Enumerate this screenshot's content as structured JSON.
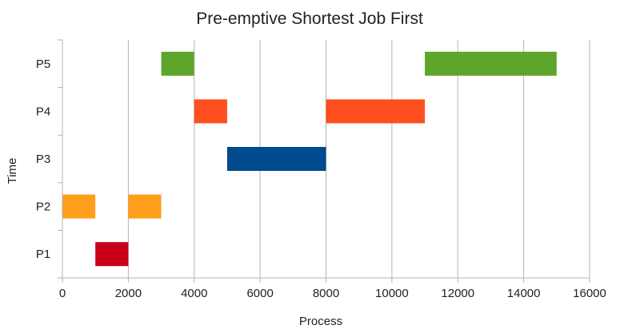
{
  "chart_data": {
    "type": "bar",
    "orientation": "horizontal-gantt",
    "title": "Pre-emptive Shortest Job First",
    "xlabel": "Process",
    "ylabel": "Time",
    "xlim": [
      0,
      16000
    ],
    "x_ticks": [
      0,
      2000,
      4000,
      6000,
      8000,
      10000,
      12000,
      14000,
      16000
    ],
    "categories": [
      "P1",
      "P2",
      "P3",
      "P4",
      "P5"
    ],
    "grid": "vertical",
    "legend": "none",
    "segments": [
      {
        "category": "P1",
        "start": 1000,
        "end": 2000,
        "color": "#c9001a"
      },
      {
        "category": "P2",
        "start": 0,
        "end": 1000,
        "color": "#ff9e1b"
      },
      {
        "category": "P2",
        "start": 2000,
        "end": 3000,
        "color": "#ff9e1b"
      },
      {
        "category": "P3",
        "start": 5000,
        "end": 8000,
        "color": "#004b8d"
      },
      {
        "category": "P4",
        "start": 4000,
        "end": 5000,
        "color": "#ff4f1f"
      },
      {
        "category": "P4",
        "start": 8000,
        "end": 11000,
        "color": "#ff4f1f"
      },
      {
        "category": "P5",
        "start": 3000,
        "end": 4000,
        "color": "#5ea52c"
      },
      {
        "category": "P5",
        "start": 11000,
        "end": 15000,
        "color": "#5ea52c"
      }
    ]
  }
}
